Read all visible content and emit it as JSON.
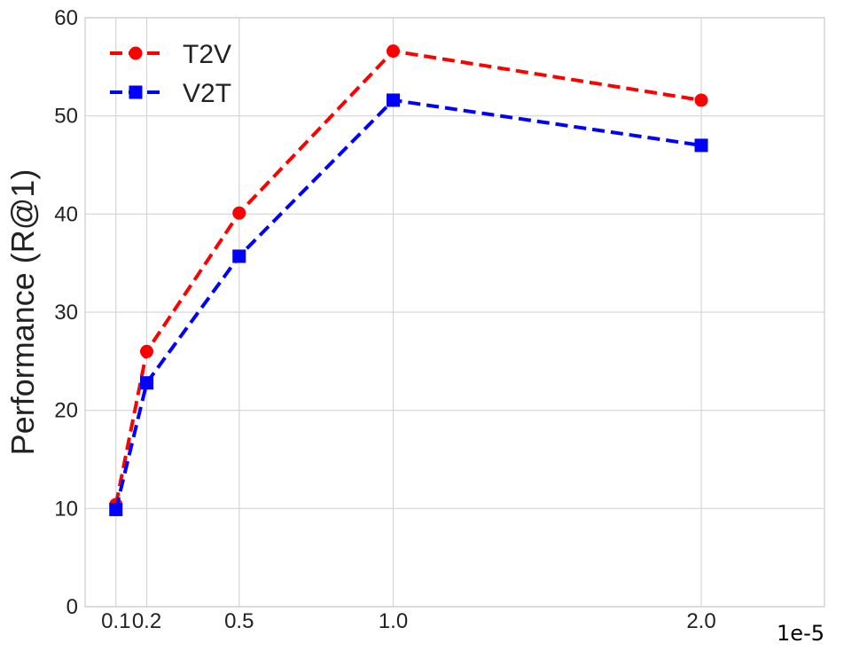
{
  "chart_data": {
    "type": "line",
    "x": [
      0.1,
      0.2,
      0.5,
      1.0,
      2.0
    ],
    "x_tick_labels": [
      "0.1",
      "0.2",
      "0.5",
      "1.0",
      "2.0"
    ],
    "x_offset_label": "1e-5",
    "xlim": [
      0.0,
      2.4
    ],
    "ylabel": "Performance (R@1)",
    "ylim": [
      0,
      60
    ],
    "y_ticks": [
      0,
      10,
      20,
      30,
      40,
      50,
      60
    ],
    "grid": true,
    "legend_position": "top-left",
    "series": [
      {
        "name": "T2V",
        "values": [
          10.4,
          26.0,
          40.1,
          56.6,
          51.6
        ],
        "color": "#ff0000",
        "marker": "circle",
        "linestyle": "dashed"
      },
      {
        "name": "V2T",
        "values": [
          9.9,
          22.8,
          35.7,
          51.6,
          47.0
        ],
        "color": "#0000ff",
        "marker": "square",
        "linestyle": "dashed"
      }
    ]
  }
}
